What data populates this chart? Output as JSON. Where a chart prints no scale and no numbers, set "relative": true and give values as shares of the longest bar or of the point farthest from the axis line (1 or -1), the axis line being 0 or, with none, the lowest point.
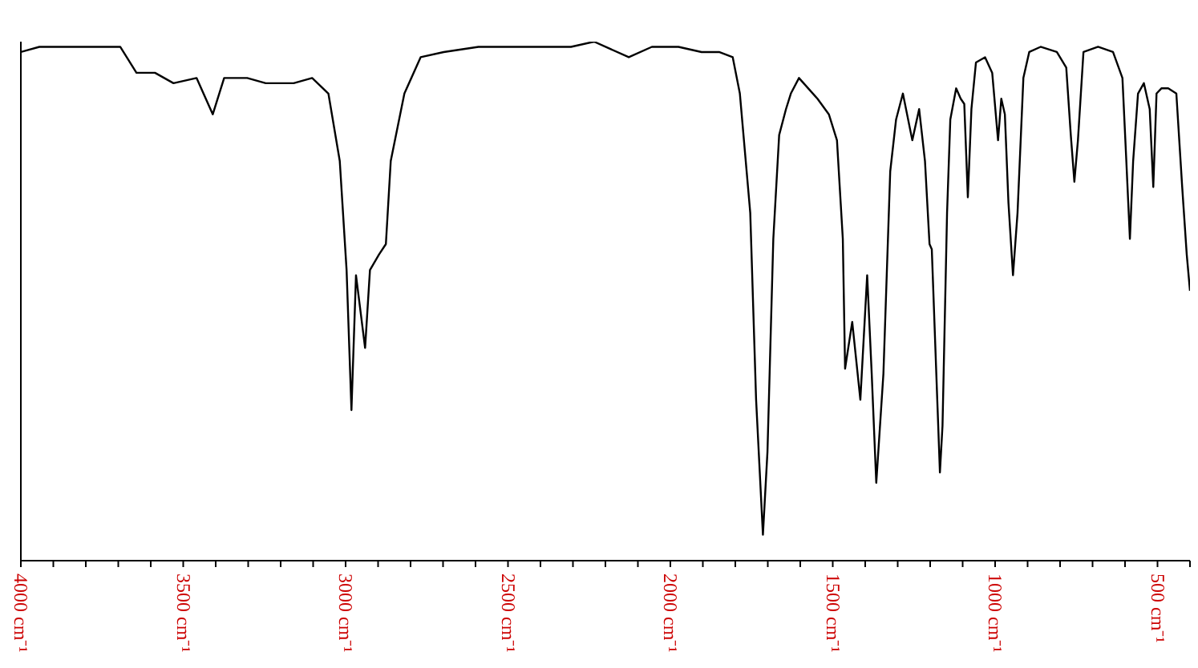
{
  "chart_data": {
    "type": "line",
    "relative": true,
    "marker": "none",
    "line_style": "solid",
    "xlim": [
      4000,
      400
    ],
    "xticks": [
      {
        "value": 4000,
        "label": "4000 cm⁻¹"
      },
      {
        "value": 3900,
        "label": null
      },
      {
        "value": 3800,
        "label": null
      },
      {
        "value": 3700,
        "label": null
      },
      {
        "value": 3600,
        "label": null
      },
      {
        "value": 3500,
        "label": "3500 cm⁻¹"
      },
      {
        "value": 3400,
        "label": null
      },
      {
        "value": 3300,
        "label": null
      },
      {
        "value": 3200,
        "label": null
      },
      {
        "value": 3100,
        "label": null
      },
      {
        "value": 3000,
        "label": "3000 cm⁻¹"
      },
      {
        "value": 2900,
        "label": null
      },
      {
        "value": 2800,
        "label": null
      },
      {
        "value": 2700,
        "label": null
      },
      {
        "value": 2600,
        "label": null
      },
      {
        "value": 2500,
        "label": "2500 cm⁻¹"
      },
      {
        "value": 2400,
        "label": null
      },
      {
        "value": 2300,
        "label": null
      },
      {
        "value": 2200,
        "label": null
      },
      {
        "value": 2100,
        "label": null
      },
      {
        "value": 2000,
        "label": "2000 cm⁻¹"
      },
      {
        "value": 1900,
        "label": null
      },
      {
        "value": 1800,
        "label": null
      },
      {
        "value": 1700,
        "label": null
      },
      {
        "value": 1600,
        "label": null
      },
      {
        "value": 1500,
        "label": "1500 cm⁻¹"
      },
      {
        "value": 1400,
        "label": null
      },
      {
        "value": 1300,
        "label": null
      },
      {
        "value": 1200,
        "label": null
      },
      {
        "value": 1100,
        "label": null
      },
      {
        "value": 1000,
        "label": "1000 cm⁻¹"
      },
      {
        "value": 900,
        "label": null
      },
      {
        "value": 800,
        "label": null
      },
      {
        "value": 700,
        "label": null
      },
      {
        "value": 600,
        "label": null
      },
      {
        "value": 500,
        "label": "500 cm⁻¹"
      },
      {
        "value": 400,
        "label": null
      }
    ],
    "series": [
      {
        "color": "#000000",
        "x": [
          4000,
          3943,
          3872,
          3801,
          3694,
          3644,
          3587,
          3530,
          3459,
          3409,
          3374,
          3303,
          3246,
          3160,
          3103,
          3053,
          3018,
          2997,
          2982,
          2968,
          2940,
          2925,
          2897,
          2876,
          2861,
          2819,
          2769,
          2698,
          2591,
          2306,
          2235,
          2128,
          2057,
          2000,
          1975,
          1904,
          1850,
          1808,
          1786,
          1754,
          1736,
          1715,
          1701,
          1683,
          1665,
          1644,
          1629,
          1604,
          1547,
          1512,
          1487,
          1469,
          1462,
          1440,
          1415,
          1394,
          1380,
          1366,
          1344,
          1323,
          1305,
          1284,
          1255,
          1234,
          1216,
          1202,
          1195,
          1184,
          1170,
          1162,
          1148,
          1138,
          1120,
          1106,
          1095,
          1084,
          1073,
          1059,
          1031,
          1009,
          991,
          981,
          970,
          959,
          945,
          931,
          913,
          895,
          860,
          810,
          781,
          767,
          756,
          745,
          728,
          683,
          637,
          608,
          596,
          585,
          575,
          560,
          542,
          524,
          513,
          503,
          488,
          467,
          442,
          424,
          410,
          400
        ],
        "values": [
          0.98,
          0.99,
          0.99,
          0.99,
          0.99,
          0.94,
          0.94,
          0.92,
          0.93,
          0.86,
          0.93,
          0.93,
          0.92,
          0.92,
          0.93,
          0.9,
          0.77,
          0.56,
          0.29,
          0.55,
          0.41,
          0.56,
          0.59,
          0.61,
          0.77,
          0.9,
          0.97,
          0.98,
          0.99,
          0.99,
          1,
          0.97,
          0.99,
          0.99,
          0.99,
          0.98,
          0.98,
          0.97,
          0.9,
          0.67,
          0.31,
          0.05,
          0.21,
          0.62,
          0.82,
          0.87,
          0.9,
          0.93,
          0.89,
          0.86,
          0.81,
          0.62,
          0.37,
          0.46,
          0.31,
          0.55,
          0.36,
          0.15,
          0.36,
          0.75,
          0.85,
          0.9,
          0.81,
          0.87,
          0.77,
          0.61,
          0.6,
          0.41,
          0.17,
          0.26,
          0.67,
          0.85,
          0.91,
          0.89,
          0.88,
          0.7,
          0.87,
          0.96,
          0.97,
          0.94,
          0.81,
          0.89,
          0.86,
          0.69,
          0.55,
          0.67,
          0.93,
          0.98,
          0.99,
          0.98,
          0.95,
          0.82,
          0.73,
          0.81,
          0.98,
          0.99,
          0.98,
          0.93,
          0.77,
          0.62,
          0.77,
          0.9,
          0.92,
          0.87,
          0.72,
          0.9,
          0.91,
          0.91,
          0.9,
          0.72,
          0.59,
          0.52
        ]
      }
    ]
  }
}
